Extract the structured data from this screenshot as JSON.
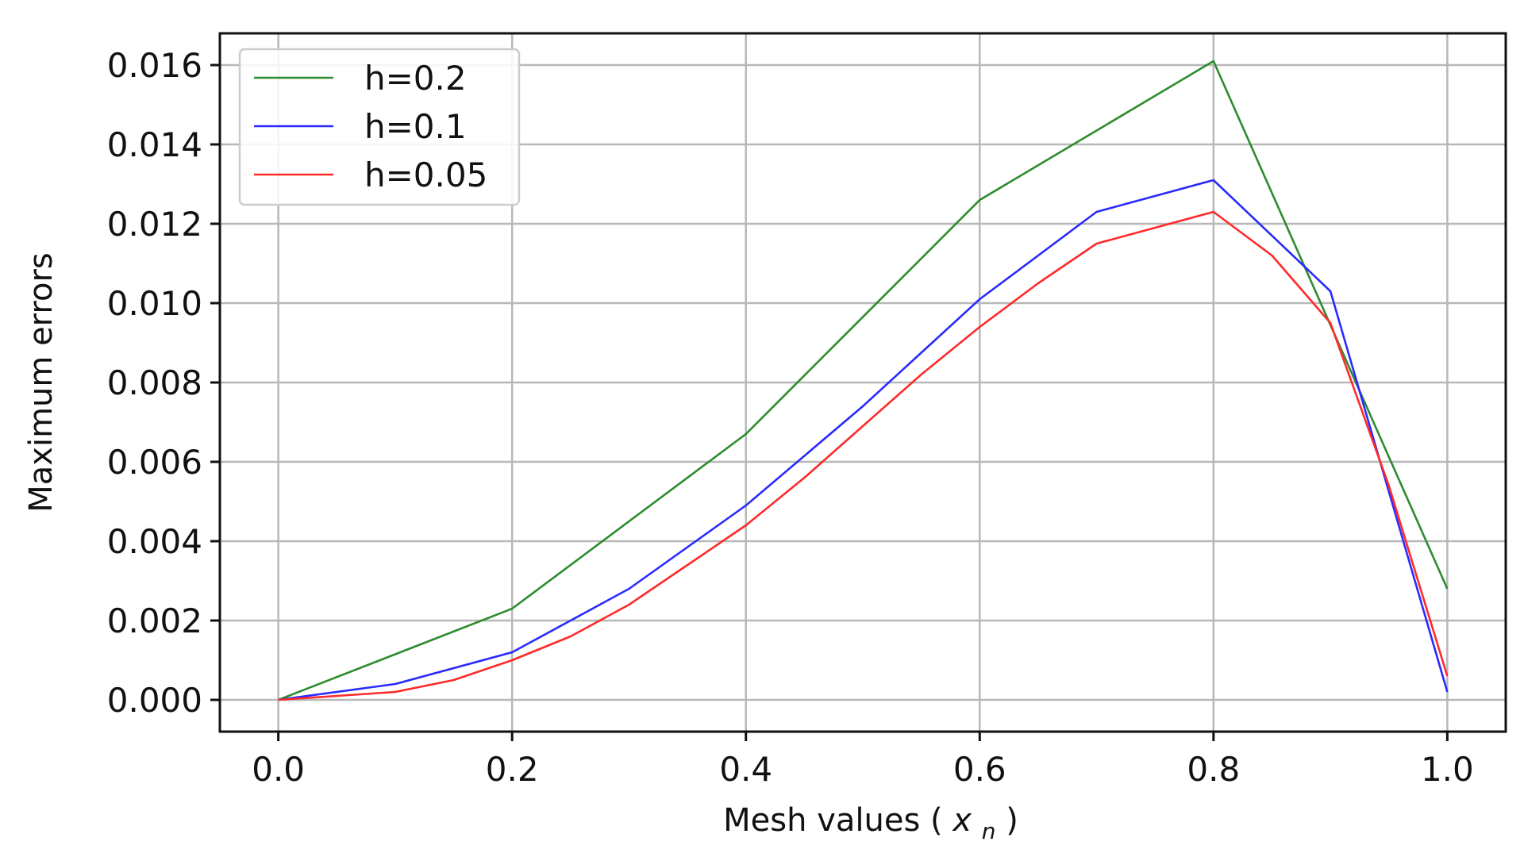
{
  "chart_data": {
    "type": "line",
    "title": "",
    "xlabel": "Mesh values",
    "xlabel_math": "x",
    "xlabel_math_sub": "n",
    "ylabel": "Maximum errors",
    "xlim": [
      -0.05,
      1.05
    ],
    "ylim": [
      -0.0008,
      0.0168
    ],
    "grid": true,
    "legend_position": "upper-left",
    "xticks": [
      0.0,
      0.2,
      0.4,
      0.6,
      0.8,
      1.0
    ],
    "xtick_labels": [
      "0.0",
      "0.2",
      "0.4",
      "0.6",
      "0.8",
      "1.0"
    ],
    "yticks": [
      0.0,
      0.002,
      0.004,
      0.006,
      0.008,
      0.01,
      0.012,
      0.014,
      0.016
    ],
    "ytick_labels": [
      "0.000",
      "0.002",
      "0.004",
      "0.006",
      "0.008",
      "0.010",
      "0.012",
      "0.014",
      "0.016"
    ],
    "series": [
      {
        "name": "h=0.2",
        "color": "#2e8b2e",
        "x": [
          0.0,
          0.2,
          0.4,
          0.6,
          0.8,
          1.0
        ],
        "y": [
          0.0,
          0.0023,
          0.0067,
          0.0126,
          0.0161,
          0.0028
        ]
      },
      {
        "name": "h=0.1",
        "color": "#2a2aff",
        "x": [
          0.0,
          0.1,
          0.2,
          0.3,
          0.4,
          0.5,
          0.6,
          0.7,
          0.8,
          0.9,
          1.0
        ],
        "y": [
          0.0,
          0.0004,
          0.0012,
          0.0028,
          0.0049,
          0.0074,
          0.0101,
          0.0123,
          0.0131,
          0.0103,
          0.0002
        ]
      },
      {
        "name": "h=0.05",
        "color": "#ff2a2a",
        "x": [
          0.0,
          0.05,
          0.1,
          0.15,
          0.2,
          0.25,
          0.3,
          0.35,
          0.4,
          0.45,
          0.5,
          0.55,
          0.6,
          0.65,
          0.7,
          0.75,
          0.8,
          0.85,
          0.9,
          0.95,
          1.0
        ],
        "y": [
          0.0,
          0.0001,
          0.0002,
          0.0005,
          0.001,
          0.0016,
          0.0024,
          0.0034,
          0.0044,
          0.0056,
          0.0069,
          0.0082,
          0.0094,
          0.0105,
          0.0115,
          0.0119,
          0.0123,
          0.0112,
          0.0095,
          0.0054,
          0.0006
        ]
      }
    ]
  }
}
